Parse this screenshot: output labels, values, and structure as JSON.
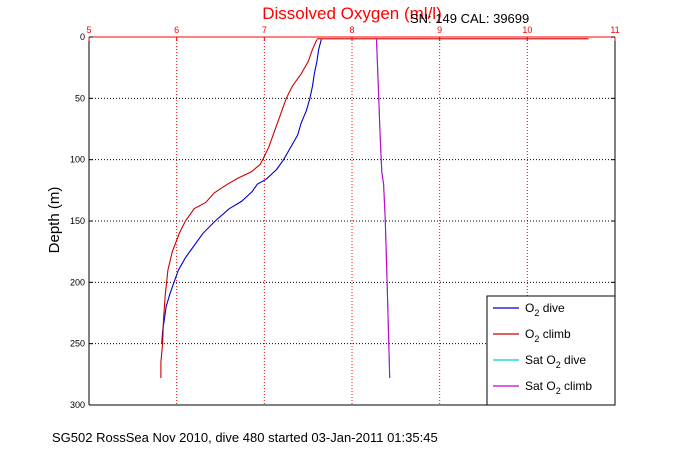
{
  "chart_data": {
    "type": "line",
    "title": "Dissolved Oxygen (ml/l)",
    "subtitle": "SN: 149  CAL: 39699",
    "xlabel": "",
    "ylabel": "Depth (m)",
    "xlim": [
      5,
      11
    ],
    "ylim": [
      300,
      0
    ],
    "x_ticks": [
      "5",
      "6",
      "7",
      "8",
      "9",
      "10",
      "11"
    ],
    "y_ticks": [
      "0",
      "50",
      "100",
      "150",
      "200",
      "250",
      "300"
    ],
    "grid": true,
    "legend_position": "bottom-right",
    "legend": [
      {
        "main": "O",
        "sub": "2",
        "rest": " dive"
      },
      {
        "main": "O",
        "sub": "2",
        "rest": " climb"
      },
      {
        "main": "Sat O",
        "sub": "2",
        "rest": " dive"
      },
      {
        "main": "Sat O",
        "sub": "2",
        "rest": " climb"
      }
    ],
    "series": [
      {
        "name": "O2 dive",
        "color": "#0000cc",
        "x": [
          7.65,
          7.62,
          7.6,
          7.57,
          7.55,
          7.52,
          7.48,
          7.42,
          7.38,
          7.3,
          7.22,
          7.14,
          7.02,
          6.92,
          6.86,
          6.74,
          6.6,
          6.44,
          6.3,
          6.2,
          6.1,
          6.02,
          5.97,
          5.92,
          5.88,
          5.86,
          5.84,
          5.83
        ],
        "y": [
          2,
          10,
          20,
          30,
          40,
          50,
          60,
          70,
          80,
          90,
          100,
          108,
          116,
          120,
          126,
          134,
          140,
          150,
          160,
          170,
          180,
          190,
          200,
          210,
          220,
          230,
          240,
          250
        ]
      },
      {
        "name": "O2 climb",
        "color": "#cc0000",
        "x": [
          7.6,
          7.55,
          7.5,
          7.42,
          7.32,
          7.25,
          7.2,
          7.15,
          7.1,
          7.05,
          6.98,
          6.95,
          6.85,
          6.7,
          6.58,
          6.43,
          6.33,
          6.2,
          6.1,
          6.03,
          5.95,
          5.9,
          5.87,
          5.85,
          5.84,
          5.82,
          5.82
        ],
        "y": [
          2,
          10,
          20,
          30,
          40,
          50,
          60,
          70,
          80,
          90,
          100,
          104,
          110,
          115,
          120,
          127,
          135,
          140,
          150,
          160,
          175,
          190,
          210,
          230,
          250,
          265,
          278
        ]
      },
      {
        "name": "Sat O2 dive",
        "color": "#00cccc",
        "x": [
          8.28,
          8.3,
          8.32,
          8.34,
          8.36,
          8.38,
          8.4,
          8.42,
          8.43
        ],
        "y": [
          2,
          40,
          80,
          110,
          120,
          150,
          200,
          250,
          278
        ]
      },
      {
        "name": "Sat O2 climb",
        "color": "#cc00cc",
        "x": [
          8.28,
          8.3,
          8.32,
          8.34,
          8.36,
          8.38,
          8.4,
          8.42,
          8.43
        ],
        "y": [
          2,
          40,
          80,
          110,
          120,
          150,
          200,
          250,
          278
        ]
      },
      {
        "name": "",
        "color": "#cc0000",
        "x": [
          7.6,
          10.7
        ],
        "y": [
          1.5,
          1.5
        ]
      }
    ]
  },
  "footer": "SG502 RossSea Nov 2010, dive 480 started 03-Jan-2011 01:35:45"
}
